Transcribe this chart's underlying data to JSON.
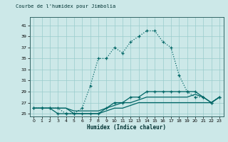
{
  "title": "Courbe de l'humidex pour Jimbolia",
  "xlabel": "Humidex (Indice chaleur)",
  "bg_color": "#cce8e8",
  "plot_bg_color": "#cce8e8",
  "line_color": "#006666",
  "grid_color": "#99cccc",
  "xlim": [
    -0.5,
    23.5
  ],
  "ylim": [
    24.5,
    42.5
  ],
  "yticks": [
    25,
    27,
    29,
    31,
    33,
    35,
    37,
    39,
    41
  ],
  "xticks": [
    0,
    1,
    2,
    3,
    4,
    5,
    6,
    7,
    8,
    9,
    10,
    11,
    12,
    13,
    14,
    15,
    16,
    17,
    18,
    19,
    20,
    21,
    22,
    23
  ],
  "lines": [
    {
      "x": [
        0,
        1,
        2,
        3,
        4,
        5,
        6,
        7,
        8,
        9,
        10,
        11,
        12,
        13,
        14,
        15,
        16,
        17,
        18,
        19,
        20,
        21,
        22,
        23
      ],
      "y": [
        26,
        26,
        26,
        26,
        25,
        25,
        26,
        30,
        35,
        35,
        37,
        36,
        38,
        39,
        40,
        40,
        38,
        37,
        32,
        29,
        28,
        28,
        27,
        28
      ],
      "style": ":",
      "marker": "+"
    },
    {
      "x": [
        0,
        1,
        2,
        3,
        4,
        5,
        6,
        7,
        8,
        9,
        10,
        11,
        12,
        13,
        14,
        15,
        16,
        17,
        18,
        19,
        20,
        21,
        22,
        23
      ],
      "y": [
        26,
        26,
        26,
        25,
        25,
        25,
        25,
        25,
        25,
        26,
        27,
        27,
        28,
        28,
        29,
        29,
        29,
        29,
        29,
        29,
        29,
        28,
        27,
        28
      ],
      "style": "-",
      "marker": "+"
    },
    {
      "x": [
        0,
        1,
        2,
        3,
        4,
        5,
        6,
        7,
        8,
        9,
        10,
        11,
        12,
        13,
        14,
        15,
        16,
        17,
        18,
        19,
        20,
        21,
        22,
        23
      ],
      "y": [
        26,
        26,
        26,
        26,
        26,
        25.5,
        25.5,
        25.5,
        25.5,
        26,
        26.5,
        27,
        27,
        27.5,
        28,
        28,
        28,
        28,
        28,
        28,
        28.5,
        28,
        27,
        28
      ],
      "style": "-",
      "marker": null
    },
    {
      "x": [
        0,
        1,
        2,
        3,
        4,
        5,
        6,
        7,
        8,
        9,
        10,
        11,
        12,
        13,
        14,
        15,
        16,
        17,
        18,
        19,
        20,
        21,
        22,
        23
      ],
      "y": [
        26,
        26,
        26,
        26,
        26,
        25,
        25,
        25,
        25,
        25.5,
        26,
        26,
        26.5,
        27,
        27,
        27,
        27,
        27,
        27,
        27,
        27,
        27,
        27,
        28
      ],
      "style": "-",
      "marker": null
    }
  ]
}
